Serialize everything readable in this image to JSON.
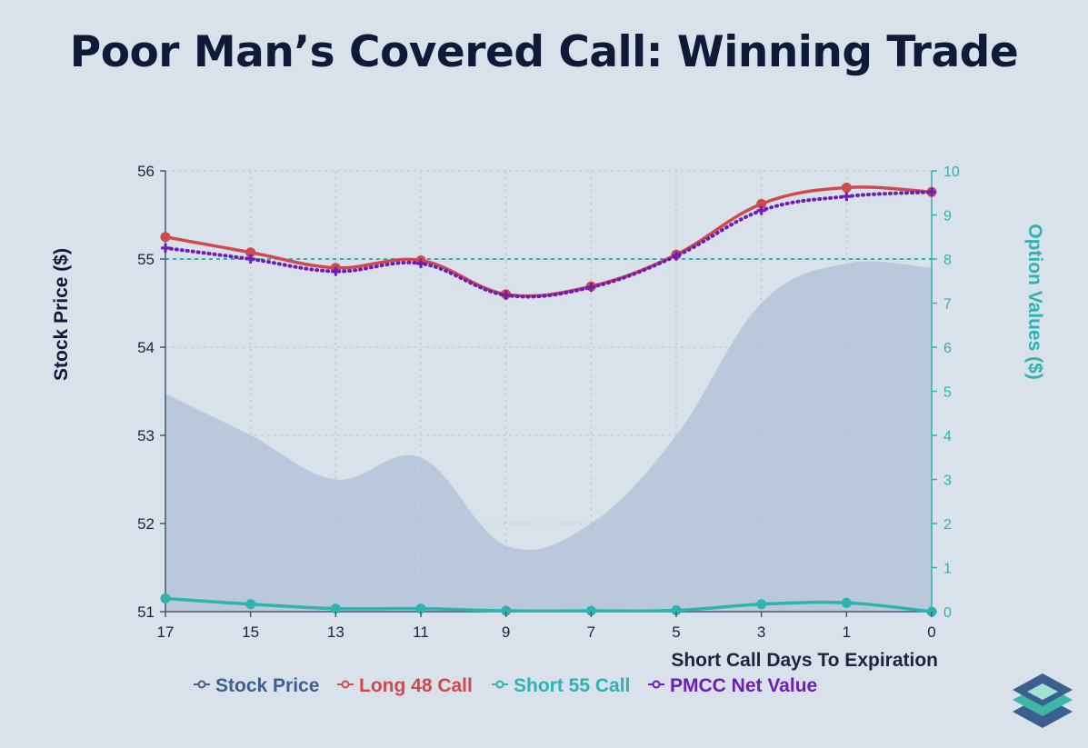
{
  "chart_data": {
    "type": "line",
    "title": "Poor Man’s Covered Call: Winning Trade",
    "xlabel": "Short Call Days To Expiration",
    "ylabel_left": "Stock Price ($)",
    "ylabel_right": "Option Values ($)",
    "x": [
      17,
      15,
      13,
      11,
      9,
      7,
      5,
      3,
      1,
      0
    ],
    "x_tick_labels": [
      "17",
      "15",
      "13",
      "11",
      "9",
      "7",
      "5",
      "3",
      "1",
      "0"
    ],
    "ylim_left": [
      51,
      56
    ],
    "y_left_ticks": [
      "51",
      "52",
      "53",
      "54",
      "55",
      "56"
    ],
    "ylim_right": [
      0,
      10
    ],
    "y_right_ticks": [
      "0",
      "1",
      "2",
      "3",
      "4",
      "5",
      "6",
      "7",
      "8",
      "9",
      "10"
    ],
    "reference_line": {
      "axis": "right",
      "value": 8
    },
    "series": [
      {
        "name": "Stock Price",
        "axis": "left",
        "style": "area",
        "color": "#b3c3d8",
        "values": [
          53.47,
          53.0,
          52.5,
          52.75,
          51.75,
          52.0,
          53.0,
          54.5,
          54.95,
          54.9
        ]
      },
      {
        "name": "Long 48 Call",
        "axis": "right",
        "style": "line",
        "color": "#d0494c",
        "values": [
          8.5,
          8.15,
          7.8,
          7.97,
          7.2,
          7.38,
          8.1,
          9.25,
          9.62,
          9.52
        ]
      },
      {
        "name": "Short 55 Call",
        "axis": "right",
        "style": "line",
        "color": "#2fb3b0",
        "values": [
          0.3,
          0.17,
          0.07,
          0.07,
          0.02,
          0.02,
          0.03,
          0.17,
          0.2,
          0.0
        ]
      },
      {
        "name": "PMCC Net Value",
        "axis": "right",
        "style": "dotted",
        "color": "#6b1fb8",
        "values": [
          8.25,
          8.0,
          7.72,
          7.9,
          7.18,
          7.36,
          8.07,
          9.1,
          9.42,
          9.52
        ]
      }
    ],
    "legend": [
      {
        "label": "Stock Price",
        "color": "#3f5f8f"
      },
      {
        "label": "Long 48 Call",
        "color": "#d0494c"
      },
      {
        "label": "Short 55 Call",
        "color": "#2fb3b0"
      },
      {
        "label": "PMCC Net Value",
        "color": "#6b1fb8"
      }
    ],
    "legend_position": "bottom-center"
  }
}
